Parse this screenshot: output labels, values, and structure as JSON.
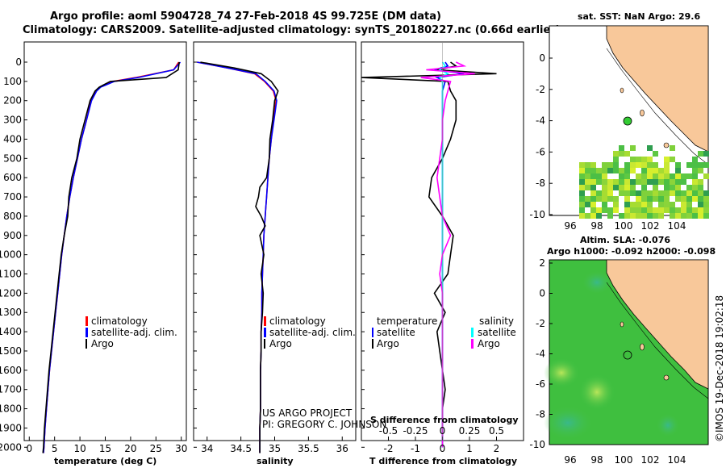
{
  "header": {
    "title_line1": "Argo profile: aoml 5904728_74 27-Feb-2018 4S 99.725E (DM data)",
    "title_line2": "Climatology: CARS2009. Satellite-adjusted climatology: synTS_20180227.nc (0.66d earlier)"
  },
  "depth_axis": {
    "ticks": [
      "0",
      "100",
      "200",
      "300",
      "400",
      "500",
      "600",
      "700",
      "800",
      "900",
      "1000",
      "1100",
      "1200",
      "1300",
      "1400",
      "1500",
      "1600",
      "1700",
      "1800",
      "1900",
      "2000"
    ]
  },
  "chart_data": [
    {
      "type": "line",
      "id": "temperature",
      "xlabel": "temperature (deg C)",
      "xlim": [
        -1,
        31
      ],
      "ylim": [
        0,
        2070
      ],
      "xticks": [
        0,
        5,
        10,
        15,
        20,
        25,
        30
      ],
      "xtick_labels": [
        "0",
        "5",
        "10",
        "15",
        "20",
        "25",
        "30"
      ],
      "y": [
        0,
        40,
        80,
        100,
        130,
        150,
        200,
        300,
        400,
        500,
        600,
        700,
        800,
        900,
        1000,
        1100,
        1200,
        1300,
        1400,
        1500,
        1600,
        1700,
        1800,
        1900,
        2000,
        2030
      ],
      "series": [
        {
          "name": "climatology",
          "color": "#ff0000",
          "values": [
            29.5,
            28.5,
            21,
            16.5,
            14,
            13.2,
            12.2,
            11.3,
            10.3,
            9.5,
            8.7,
            8.0,
            7.4,
            6.9,
            6.4,
            6.0,
            5.6,
            5.2,
            4.8,
            4.4,
            4.0,
            3.7,
            3.4,
            3.1,
            2.9,
            2.8
          ]
        },
        {
          "name": "satellite-adj. clim.",
          "color": "#0000ff",
          "values": [
            29.8,
            28.5,
            21.5,
            16.8,
            14.1,
            13.3,
            12.3,
            11.3,
            10.3,
            9.5,
            8.7,
            8.0,
            7.4,
            6.9,
            6.4,
            6.0,
            5.6,
            5.2,
            4.8,
            4.4,
            4.0,
            3.7,
            3.4,
            3.1,
            2.9,
            2.8
          ]
        },
        {
          "name": "Argo",
          "color": "#000000",
          "values": [
            29.6,
            29.4,
            27,
            16,
            13.8,
            13.0,
            12.0,
            11.0,
            10.0,
            9.4,
            8.4,
            7.8,
            7.6,
            6.9,
            6.3,
            5.9,
            5.5,
            5.1,
            4.7,
            4.3,
            3.9,
            3.6,
            3.3,
            3.0,
            2.8,
            2.7
          ]
        }
      ],
      "legend": [
        "climatology",
        "satellite-adj. clim.",
        "Argo"
      ]
    },
    {
      "type": "line",
      "id": "salinity",
      "xlabel": "salinity",
      "xlim": [
        33.8,
        36.2
      ],
      "ylim": [
        0,
        2070
      ],
      "xticks": [
        34,
        34.5,
        35,
        35.5,
        36
      ],
      "xtick_labels": [
        "34",
        "34.5",
        "35",
        "35.5",
        "36"
      ],
      "y": [
        0,
        30,
        60,
        100,
        150,
        200,
        300,
        400,
        500,
        600,
        650,
        700,
        750,
        800,
        850,
        900,
        1000,
        1100,
        1200,
        1300,
        1400,
        1500,
        1600,
        1700,
        1800,
        1900,
        2000,
        2030
      ],
      "series": [
        {
          "name": "climatology",
          "color": "#ff0000",
          "values": [
            33.85,
            34.3,
            34.7,
            34.85,
            34.98,
            35.02,
            34.98,
            34.95,
            34.92,
            34.9,
            34.89,
            34.88,
            34.87,
            34.86,
            34.85,
            34.84,
            34.83,
            34.82,
            34.81,
            34.81,
            34.8,
            34.8,
            34.79,
            34.79,
            34.79,
            34.78,
            34.78,
            34.78
          ]
        },
        {
          "name": "satellite-adj. clim.",
          "color": "#0000ff",
          "values": [
            33.85,
            34.3,
            34.72,
            34.86,
            34.99,
            35.03,
            34.99,
            34.95,
            34.92,
            34.9,
            34.89,
            34.88,
            34.87,
            34.86,
            34.85,
            34.84,
            34.83,
            34.82,
            34.81,
            34.81,
            34.8,
            34.8,
            34.79,
            34.79,
            34.79,
            34.78,
            34.78,
            34.78
          ]
        },
        {
          "name": "Argo",
          "color": "#000000",
          "values": [
            33.9,
            34.4,
            34.8,
            34.95,
            35.05,
            35.0,
            34.97,
            34.93,
            34.92,
            34.88,
            34.78,
            34.76,
            34.72,
            34.8,
            34.86,
            34.78,
            34.84,
            34.8,
            34.83,
            34.82,
            34.8,
            34.8,
            34.79,
            34.79,
            34.79,
            34.78,
            34.78,
            34.78
          ]
        }
      ],
      "legend": [
        "climatology",
        "satellite-adj. clim.",
        "Argo"
      ],
      "annotation_line1": "US ARGO PROJECT",
      "annotation_line2": "PI: GREGORY C. JOHNSON"
    },
    {
      "type": "line",
      "id": "difference",
      "xlabel": "T difference from climatology",
      "xlabel_top": "S difference from climatology",
      "xlim": [
        -3,
        3
      ],
      "ylim": [
        0,
        2070
      ],
      "xticks": [
        -2,
        -1,
        0,
        1,
        2
      ],
      "xtick_labels": [
        "-2",
        "-1",
        "0",
        "1",
        "2"
      ],
      "s_tick_labels": [
        "-0.5",
        "-0.25",
        "0",
        "0.25",
        "0.5"
      ],
      "y": [
        0,
        20,
        40,
        60,
        80,
        100,
        150,
        200,
        300,
        400,
        500,
        600,
        700,
        800,
        900,
        1000,
        1100,
        1200,
        1300,
        1400,
        1500,
        1600,
        1700,
        1800,
        1900,
        2000
      ],
      "series": [
        {
          "name": "temperature satellite",
          "color": "#0000ff",
          "values": [
            0.1,
            0.2,
            -0.3,
            0.8,
            -0.2,
            0.1,
            0.0,
            0.0,
            0.0,
            0.0,
            0.0,
            0.0,
            0.0,
            0.0,
            0.0,
            0.0,
            0.0,
            0.0,
            0.0,
            0.0,
            0.0,
            0.0,
            0.0,
            0.0,
            0.0,
            0.0
          ]
        },
        {
          "name": "temperature Argo",
          "color": "#000000",
          "values": [
            0.3,
            0.5,
            -0.2,
            2.0,
            -3.0,
            0.2,
            0.3,
            0.5,
            0.5,
            0.3,
            0.0,
            -0.4,
            -0.5,
            0.0,
            0.4,
            0.3,
            0.2,
            -0.3,
            0.1,
            -0.2,
            -0.1,
            0.0,
            0.1,
            0.0,
            0.0,
            0.0
          ]
        },
        {
          "name": "salinity satellite",
          "color": "#00ffff",
          "values": [
            0.0,
            0.1,
            -0.1,
            0.2,
            -0.1,
            0.0,
            0.0,
            0.0,
            0.0,
            0.0,
            0.0,
            0.0,
            0.0,
            0.0,
            0.0,
            0.0,
            0.0,
            0.0,
            0.0,
            0.0,
            0.0,
            0.0,
            0.0,
            0.0,
            0.0,
            0.0
          ]
        },
        {
          "name": "salinity Argo",
          "color": "#ff00ff",
          "values": [
            0.5,
            0.8,
            -0.6,
            1.2,
            -0.8,
            0.3,
            0.2,
            0.1,
            0.0,
            0.0,
            -0.1,
            -0.2,
            -0.1,
            0.0,
            0.3,
            0.0,
            -0.1,
            0.0,
            0.0,
            0.0,
            0.0,
            0.0,
            0.0,
            0.0,
            0.0,
            0.0
          ]
        }
      ],
      "legend": {
        "temperature_title": "temperature",
        "salinity_title": "salinity",
        "satellite": "satellite",
        "argo": "Argo"
      }
    }
  ],
  "maps": {
    "top": {
      "title": "sat. SST: NaN Argo: 29.6",
      "float_color": "#33cc33",
      "lat_ticks": [
        "0",
        "-2",
        "-4",
        "-6",
        "-8",
        "-10"
      ],
      "lon_ticks": [
        "96",
        "98",
        "100",
        "102",
        "104"
      ]
    },
    "bottom": {
      "title1": "Altim. SLA: -0.076",
      "title2": "Argo h1000: -0.092 h2000: -0.098",
      "lat_ticks": [
        "2",
        "0",
        "-2",
        "-4",
        "-6",
        "-8",
        "-10"
      ],
      "lon_ticks": [
        "96",
        "98",
        "100",
        "102",
        "104"
      ]
    }
  },
  "credit": "©IMOS 19-Dec-2018 19:02:18",
  "colors": {
    "land": "#f8c89a",
    "ocean_sla": "#3fbf3f"
  }
}
